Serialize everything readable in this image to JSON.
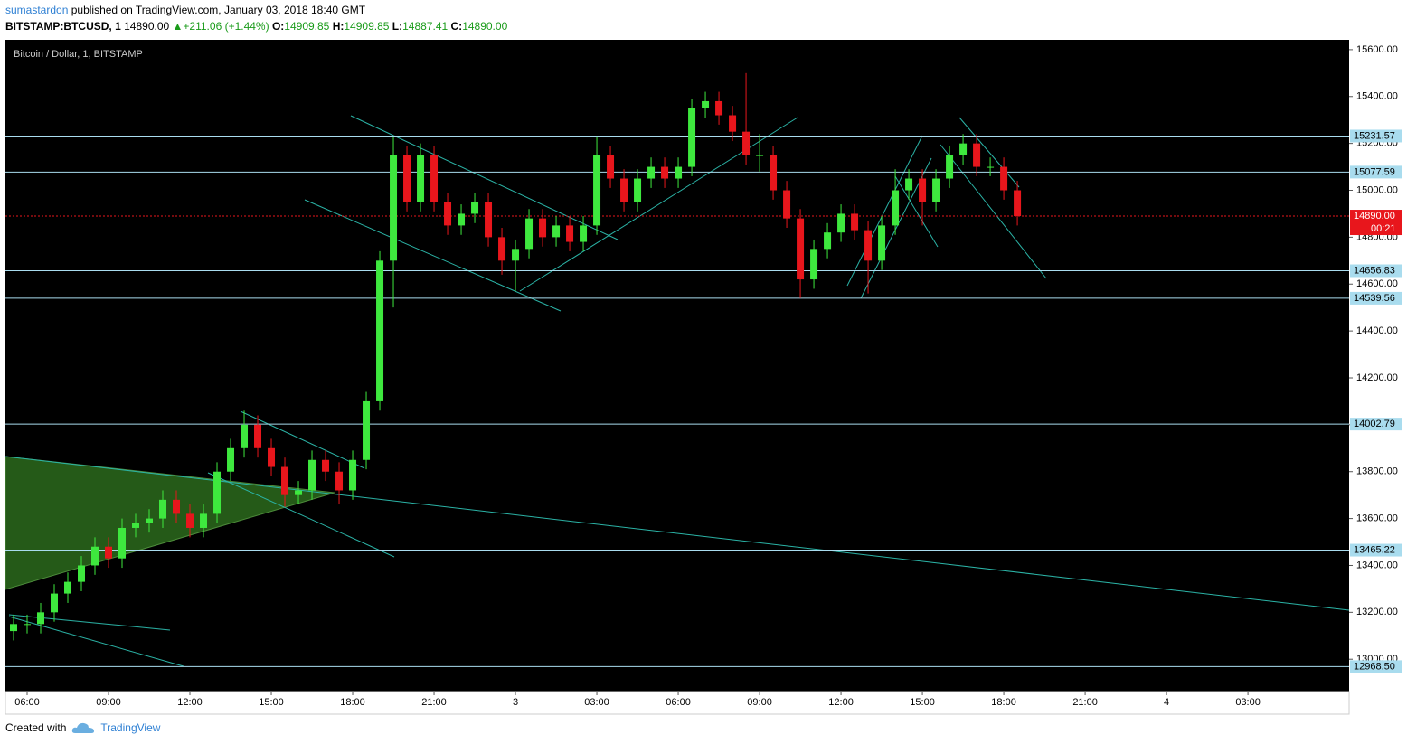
{
  "header": {
    "author": "sumastardon",
    "published": "published on TradingView.com, January 03, 2018 18:40 GMT",
    "symbol": "BITSTAMP:BTCUSD, 1",
    "last": "14890.00",
    "change": "+211.06 (+1.44%)",
    "open_label": "O:",
    "open": "14909.85",
    "high_label": "H:",
    "high": "14909.85",
    "low_label": "L:",
    "low": "14887.41",
    "close_label": "C:",
    "close": "14890.00"
  },
  "footer": {
    "created": "Created with",
    "brand": "TradingView"
  },
  "chart_data": {
    "type": "candlestick",
    "title": "Bitcoin / Dollar, 1, BITSTAMP",
    "up_color": "#3ee83e",
    "down_color": "#e8161c",
    "xlim": [
      5.2,
      54.73
    ],
    "xticks": [
      {
        "value": 6,
        "label": "06:00"
      },
      {
        "value": 9,
        "label": "09:00"
      },
      {
        "value": 12,
        "label": "12:00"
      },
      {
        "value": 15,
        "label": "15:00"
      },
      {
        "value": 18,
        "label": "18:00"
      },
      {
        "value": 21,
        "label": "21:00"
      },
      {
        "value": 24,
        "label": "3"
      },
      {
        "value": 27,
        "label": "03:00"
      },
      {
        "value": 30,
        "label": "06:00"
      },
      {
        "value": 33,
        "label": "09:00"
      },
      {
        "value": 36,
        "label": "12:00"
      },
      {
        "value": 39,
        "label": "15:00"
      },
      {
        "value": 42,
        "label": "18:00"
      },
      {
        "value": 45,
        "label": "21:00"
      },
      {
        "value": 48,
        "label": "4"
      },
      {
        "value": 51,
        "label": "03:00"
      }
    ],
    "ylim": [
      12862,
      15642
    ],
    "yticks": [
      {
        "value": 13000,
        "label": "13000.00"
      },
      {
        "value": 13200,
        "label": "13200.00"
      },
      {
        "value": 13400,
        "label": "13400.00"
      },
      {
        "value": 13600,
        "label": "13600.00"
      },
      {
        "value": 13800,
        "label": "13800.00"
      },
      {
        "value": 14000,
        "label": "14000.00"
      },
      {
        "value": 14200,
        "label": "14200.00"
      },
      {
        "value": 14400,
        "label": "14400.00"
      },
      {
        "value": 14600,
        "label": "14600.00"
      },
      {
        "value": 14800,
        "label": "14800.00"
      },
      {
        "value": 15000,
        "label": "15000.00"
      },
      {
        "value": 15200,
        "label": "15200.00"
      },
      {
        "value": 15400,
        "label": "15400.00"
      },
      {
        "value": 15600,
        "label": "15600.00"
      }
    ],
    "levels": [
      {
        "value": 15231.57,
        "label": "15231.57"
      },
      {
        "value": 15077.59,
        "label": "15077.59"
      },
      {
        "value": 14656.83,
        "label": "14656.83"
      },
      {
        "value": 14539.56,
        "label": "14539.56"
      },
      {
        "value": 14002.79,
        "label": "14002.79"
      },
      {
        "value": 13465.22,
        "label": "13465.22"
      },
      {
        "value": 12968.5,
        "label": "12968.50"
      }
    ],
    "current": {
      "value": 14890,
      "label": "14890.00"
    },
    "countdown": "00:21",
    "x": [
      5.5,
      6,
      6.5,
      7,
      7.5,
      8,
      8.5,
      9,
      9.5,
      10,
      10.5,
      11,
      11.5,
      12,
      12.5,
      13,
      13.5,
      14,
      14.5,
      15,
      15.5,
      16,
      16.5,
      17,
      17.5,
      18,
      18.5,
      19,
      19.5,
      20,
      20.5,
      21,
      21.5,
      22,
      22.5,
      23,
      23.5,
      24,
      24.5,
      25,
      25.5,
      26,
      26.5,
      27,
      27.5,
      28,
      28.5,
      29,
      29.5,
      30,
      30.5,
      31,
      31.5,
      32,
      32.5,
      33,
      33.5,
      34,
      34.5,
      35,
      35.5,
      36,
      36.5,
      37,
      37.5,
      38,
      38.5,
      39,
      39.5,
      40,
      40.5,
      41,
      41.5,
      42,
      42.5
    ],
    "open": [
      13120,
      13150,
      13150,
      13200,
      13280,
      13330,
      13400,
      13480,
      13430,
      13560,
      13580,
      13600,
      13680,
      13620,
      13560,
      13620,
      13800,
      13900,
      14000,
      13900,
      13820,
      13700,
      13720,
      13850,
      13800,
      13720,
      13850,
      14100,
      14700,
      15150,
      14950,
      15150,
      14950,
      14850,
      14900,
      14950,
      14800,
      14700,
      14750,
      14880,
      14800,
      14850,
      14780,
      14850,
      15150,
      15050,
      14950,
      15050,
      15100,
      15050,
      15100,
      15350,
      15380,
      15320,
      15250,
      15150,
      15150,
      15000,
      14880,
      14620,
      14750,
      14820,
      14900,
      14830,
      14700,
      14850,
      15000,
      15050,
      14950,
      15050,
      15150,
      15200,
      15100,
      15100,
      15000
    ],
    "high": [
      13190,
      13190,
      13240,
      13320,
      13370,
      13440,
      13520,
      13520,
      13600,
      13620,
      13640,
      13720,
      13720,
      13660,
      13660,
      13840,
      13940,
      14060,
      14040,
      13940,
      13860,
      13760,
      13890,
      13890,
      13840,
      13890,
      14140,
      14740,
      15230,
      15190,
      15200,
      15190,
      14990,
      14940,
      14990,
      14990,
      14840,
      14790,
      14920,
      14920,
      14890,
      14890,
      14890,
      15230,
      15190,
      15090,
      15090,
      15140,
      15140,
      15140,
      15390,
      15420,
      15420,
      15360,
      15500,
      15240,
      15190,
      15040,
      14920,
      14790,
      14860,
      14940,
      14940,
      14870,
      14890,
      15090,
      15090,
      15090,
      15090,
      15190,
      15240,
      15240,
      15140,
      15140,
      15040
    ],
    "low": [
      13080,
      13110,
      13110,
      13160,
      13240,
      13290,
      13360,
      13390,
      13390,
      13520,
      13540,
      13560,
      13580,
      13520,
      13520,
      13580,
      13760,
      13860,
      13860,
      13780,
      13650,
      13660,
      13680,
      13760,
      13660,
      13680,
      13810,
      14060,
      14500,
      14910,
      14910,
      14910,
      14810,
      14810,
      14860,
      14760,
      14640,
      14570,
      14710,
      14760,
      14760,
      14740,
      14740,
      14810,
      15010,
      14910,
      14910,
      15010,
      15010,
      15010,
      15060,
      15310,
      15280,
      15210,
      15110,
      15080,
      14960,
      14840,
      14540,
      14580,
      14710,
      14780,
      14790,
      14560,
      14660,
      14810,
      14960,
      14850,
      14910,
      15010,
      15110,
      15060,
      15060,
      14960,
      14850
    ],
    "close": [
      13150,
      13150,
      13200,
      13280,
      13330,
      13400,
      13480,
      13430,
      13560,
      13580,
      13600,
      13680,
      13620,
      13560,
      13620,
      13800,
      13900,
      14000,
      13900,
      13820,
      13700,
      13720,
      13850,
      13800,
      13720,
      13850,
      14100,
      14700,
      15150,
      14950,
      15150,
      14950,
      14850,
      14900,
      14950,
      14800,
      14700,
      14750,
      14880,
      14800,
      14850,
      14780,
      14850,
      15150,
      15050,
      14950,
      15050,
      15100,
      15050,
      15100,
      15350,
      15380,
      15320,
      15250,
      15150,
      15150,
      15000,
      14880,
      14620,
      14750,
      14820,
      14900,
      14830,
      14700,
      14850,
      15000,
      15050,
      14950,
      15050,
      15150,
      15200,
      15100,
      15100,
      15000,
      14890
    ]
  }
}
